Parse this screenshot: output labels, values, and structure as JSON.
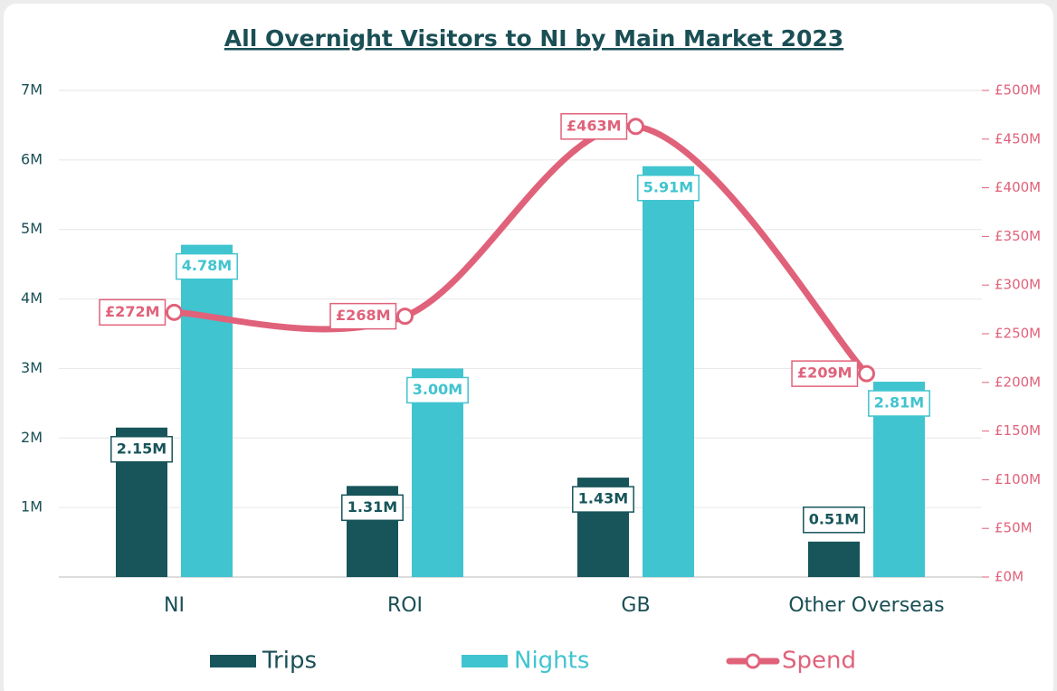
{
  "chart_data": {
    "type": "bar",
    "title": "All Overnight Visitors to NI by Main Market 2023",
    "categories": [
      "NI",
      "ROI",
      "GB",
      "Other Overseas"
    ],
    "series": [
      {
        "name": "Trips",
        "type": "bar",
        "color": "#17555a",
        "values": [
          2150000,
          1310000,
          1430000,
          510000
        ],
        "value_labels": [
          "2.15M",
          "1.31M",
          "1.43M",
          "0.51M"
        ]
      },
      {
        "name": "Nights",
        "type": "bar",
        "color": "#40c4cf",
        "values": [
          4780000,
          3000000,
          5910000,
          2810000
        ],
        "value_labels": [
          "4.78M",
          "3.00M",
          "5.91M",
          "2.81M"
        ]
      },
      {
        "name": "Spend",
        "type": "line",
        "axis": "y2",
        "color": "#e0627a",
        "values": [
          272000000,
          268000000,
          463000000,
          209000000
        ],
        "value_labels": [
          "£272M",
          "£268M",
          "£463M",
          "£209M"
        ]
      }
    ],
    "ylim": [
      0,
      7000000
    ],
    "yticks": [
      {
        "value": 1000000,
        "label": "1M"
      },
      {
        "value": 2000000,
        "label": "2M"
      },
      {
        "value": 3000000,
        "label": "3M"
      },
      {
        "value": 4000000,
        "label": "4M"
      },
      {
        "value": 5000000,
        "label": "5M"
      },
      {
        "value": 6000000,
        "label": "6M"
      },
      {
        "value": 7000000,
        "label": "7M"
      }
    ],
    "y2lim": [
      0,
      500000000
    ],
    "y2ticks": [
      {
        "value": 0,
        "label": "£0M"
      },
      {
        "value": 50000000,
        "label": "£50M"
      },
      {
        "value": 100000000,
        "label": "£100M"
      },
      {
        "value": 150000000,
        "label": "£150M"
      },
      {
        "value": 200000000,
        "label": "£200M"
      },
      {
        "value": 250000000,
        "label": "£250M"
      },
      {
        "value": 300000000,
        "label": "£300M"
      },
      {
        "value": 350000000,
        "label": "£350M"
      },
      {
        "value": 400000000,
        "label": "£400M"
      },
      {
        "value": 450000000,
        "label": "£450M"
      },
      {
        "value": 500000000,
        "label": "£500M"
      }
    ],
    "grid": true,
    "legend": "bottom"
  }
}
